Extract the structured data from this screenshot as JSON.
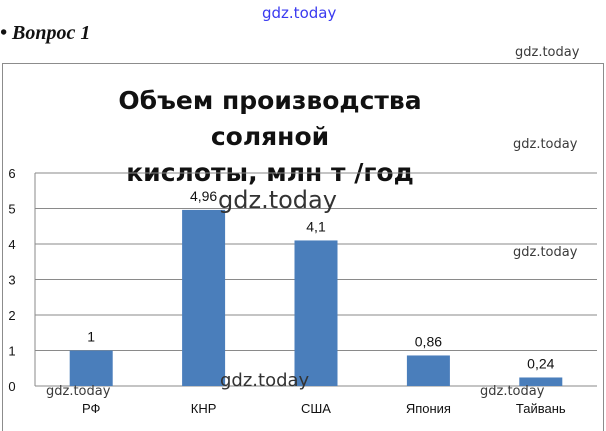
{
  "question": "• Вопрос 1",
  "watermarks": [
    "gdz.today",
    "gdz.today",
    "gdz.today",
    "gdz.today",
    "gdz.today",
    "gdz.today",
    "gdz.today",
    "gdz.today"
  ],
  "chart_data": {
    "type": "bar",
    "title_line1": "Объем производства соляной",
    "title_line2": "кислоты, млн т /год",
    "categories": [
      "РФ",
      "КНР",
      "США",
      "Япония",
      "Тайвань"
    ],
    "values": [
      1,
      4.96,
      4.1,
      0.86,
      0.24
    ],
    "value_labels": [
      "1",
      "4,96",
      "4,1",
      "0,86",
      "0,24"
    ],
    "ylim": [
      0,
      6
    ],
    "yticks": [
      "0",
      "1",
      "2",
      "3",
      "4",
      "5",
      "6"
    ],
    "grid": true,
    "bar_color": "#4a7ebb"
  }
}
